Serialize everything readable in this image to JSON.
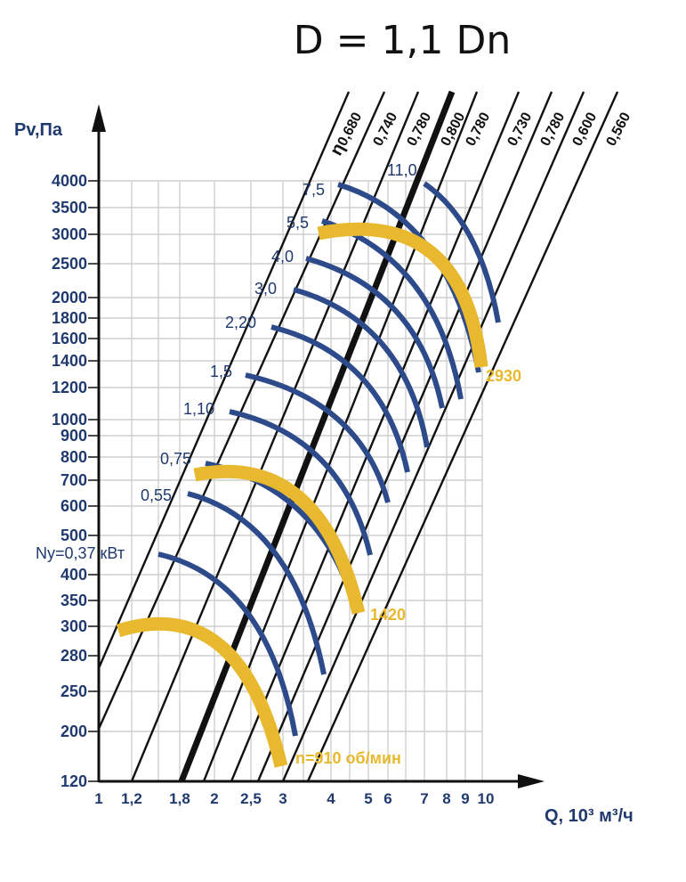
{
  "chart_data": {
    "type": "line",
    "title": "D = 1,1 Dn",
    "ylabel": "Pv,Па",
    "xlabel": "Q, 10³ м³/ч",
    "y_scale": "log",
    "x_scale": "log",
    "y_ticks": [
      "4000",
      "3500",
      "3000",
      "2500",
      "2000",
      "1800",
      "1600",
      "1400",
      "1200",
      "1000",
      "900",
      "800",
      "700",
      "600",
      "500",
      "400",
      "350",
      "300",
      "280",
      "250",
      "200",
      "120"
    ],
    "x_ticks": [
      "1",
      "1,2",
      "1,8",
      "2",
      "2,5",
      "3",
      "4",
      "5",
      "6",
      "7",
      "8",
      "9",
      "10"
    ],
    "efficiency_lines": {
      "label_prefix": "η",
      "values": [
        "0,680",
        "0,740",
        "0,780",
        "0,800",
        "0,780",
        "0,730",
        "0,780",
        "0,600",
        "0,560"
      ]
    },
    "power_labels": [
      "Ny=0,37 кВт",
      "0,55",
      "0,75",
      "1,10",
      "1,5",
      "2,20",
      "3,0",
      "4,0",
      "5,5",
      "7,5",
      "11,0"
    ],
    "speed_curves": [
      {
        "name": "n=910 об/мин",
        "label": "n=910 об/мин"
      },
      {
        "name": "1420",
        "label": "1420"
      },
      {
        "name": "2930",
        "label": "2930"
      }
    ],
    "grid": true,
    "colors": {
      "speed": "#e8b92e",
      "power": "#2d4a8a",
      "text": "#203a6e",
      "eta": "#111111"
    }
  }
}
